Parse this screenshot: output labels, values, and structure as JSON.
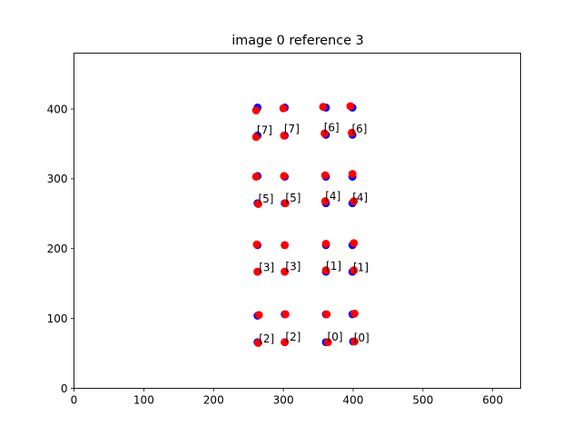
{
  "chart_data": {
    "type": "scatter",
    "title": "image 0 reference 3",
    "xlabel": "",
    "ylabel": "",
    "xlim": [
      0,
      640
    ],
    "ylim": [
      0,
      480
    ],
    "grid": false,
    "x_ticks": [
      0,
      100,
      200,
      300,
      400,
      500,
      600
    ],
    "y_ticks": [
      0,
      100,
      200,
      300,
      400
    ],
    "series": [
      {
        "color": "#0000ff",
        "points": [
          [
            263,
            66
          ],
          [
            302,
            66
          ],
          [
            361,
            66
          ],
          [
            400,
            67
          ],
          [
            263,
            104
          ],
          [
            302,
            106
          ],
          [
            361,
            106
          ],
          [
            399,
            106
          ],
          [
            263,
            167
          ],
          [
            302,
            167
          ],
          [
            361,
            167
          ],
          [
            399,
            167
          ],
          [
            263,
            205
          ],
          [
            302,
            205
          ],
          [
            361,
            205
          ],
          [
            399,
            205
          ],
          [
            263,
            265
          ],
          [
            302,
            265
          ],
          [
            361,
            265
          ],
          [
            399,
            265
          ],
          [
            263,
            304
          ],
          [
            302,
            303
          ],
          [
            361,
            303
          ],
          [
            399,
            303
          ],
          [
            263,
            362
          ],
          [
            302,
            362
          ],
          [
            361,
            363
          ],
          [
            399,
            363
          ],
          [
            263,
            402
          ],
          [
            302,
            402
          ],
          [
            361,
            402
          ],
          [
            399,
            402
          ]
        ]
      },
      {
        "color": "#ff0000",
        "points": [
          [
            264,
            65
          ],
          [
            302,
            66
          ],
          [
            364,
            66
          ],
          [
            402,
            67
          ],
          [
            265,
            105
          ],
          [
            303,
            106
          ],
          [
            362,
            106
          ],
          [
            402,
            107
          ],
          [
            263,
            167
          ],
          [
            302,
            167
          ],
          [
            361,
            169
          ],
          [
            401,
            169
          ],
          [
            262,
            206
          ],
          [
            302,
            205
          ],
          [
            361,
            207
          ],
          [
            401,
            208
          ],
          [
            264,
            264
          ],
          [
            303,
            265
          ],
          [
            360,
            268
          ],
          [
            401,
            268
          ],
          [
            261,
            303
          ],
          [
            301,
            304
          ],
          [
            360,
            305
          ],
          [
            399,
            307
          ],
          [
            261,
            360
          ],
          [
            301,
            362
          ],
          [
            359,
            365
          ],
          [
            398,
            366
          ],
          [
            261,
            398
          ],
          [
            300,
            401
          ],
          [
            357,
            403
          ],
          [
            396,
            404
          ]
        ]
      }
    ],
    "annotations": [
      {
        "text": "[0]",
        "x": 363,
        "y": 68
      },
      {
        "text": "[0]",
        "x": 401,
        "y": 67
      },
      {
        "text": "[1]",
        "x": 361,
        "y": 170
      },
      {
        "text": "[1]",
        "x": 400,
        "y": 168
      },
      {
        "text": "[2]",
        "x": 265,
        "y": 66
      },
      {
        "text": "[2]",
        "x": 303,
        "y": 68
      },
      {
        "text": "[3]",
        "x": 265,
        "y": 168
      },
      {
        "text": "[3]",
        "x": 303,
        "y": 169
      },
      {
        "text": "[4]",
        "x": 360,
        "y": 270
      },
      {
        "text": "[4]",
        "x": 399,
        "y": 268
      },
      {
        "text": "[5]",
        "x": 264,
        "y": 266
      },
      {
        "text": "[5]",
        "x": 303,
        "y": 267
      },
      {
        "text": "[6]",
        "x": 358,
        "y": 368
      },
      {
        "text": "[6]",
        "x": 398,
        "y": 366
      },
      {
        "text": "[7]",
        "x": 262,
        "y": 364
      },
      {
        "text": "[7]",
        "x": 301,
        "y": 366
      }
    ]
  }
}
